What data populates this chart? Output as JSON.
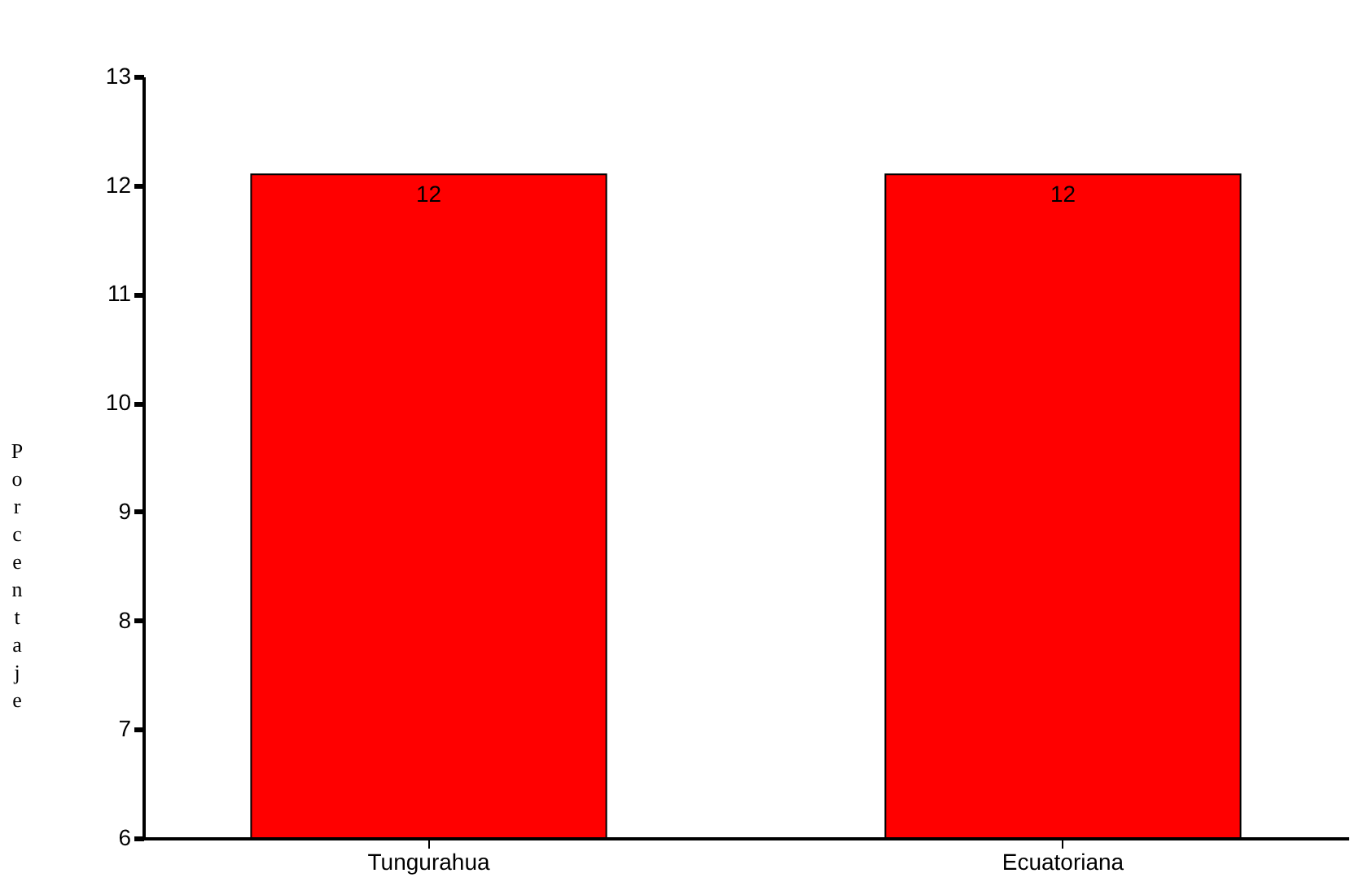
{
  "chart_data": {
    "type": "bar",
    "ylabel": "Porcentaje",
    "categories": [
      "Tungurahua",
      "Ecuatoriana"
    ],
    "values": [
      12.1,
      12.1
    ],
    "value_labels": [
      "12",
      "12"
    ],
    "color": "#ff0000",
    "ylim": [
      6,
      13
    ],
    "yticks": [
      6,
      7,
      8,
      9,
      10,
      11,
      12,
      13
    ],
    "grid": false
  }
}
